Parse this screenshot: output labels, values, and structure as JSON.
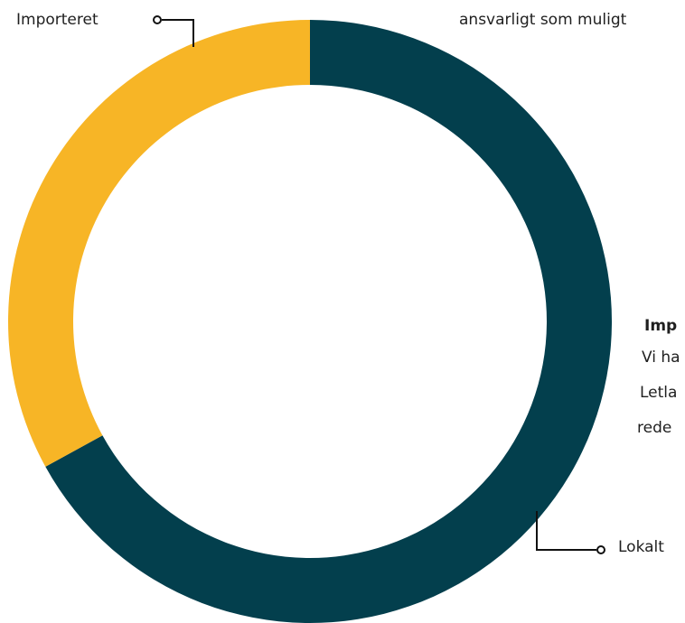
{
  "chart_data": {
    "type": "pie",
    "variant": "donut",
    "categories": [
      "Lokalt",
      "Importeret"
    ],
    "values": [
      67,
      33
    ],
    "units": "%",
    "colors": [
      "#033f4d",
      "#f7b526"
    ],
    "legend": "none"
  },
  "labels": {
    "importeret": "Importeret",
    "lokalt": "Lokalt"
  },
  "text_fragments": {
    "top_right": "ansvarligt som muligt",
    "callout_title": "Imp",
    "callout_line1": "Vi ha",
    "callout_line2": "Letla",
    "callout_line3": "rede"
  },
  "colors": {
    "line": "#111111",
    "text": "#1f1f1f"
  }
}
